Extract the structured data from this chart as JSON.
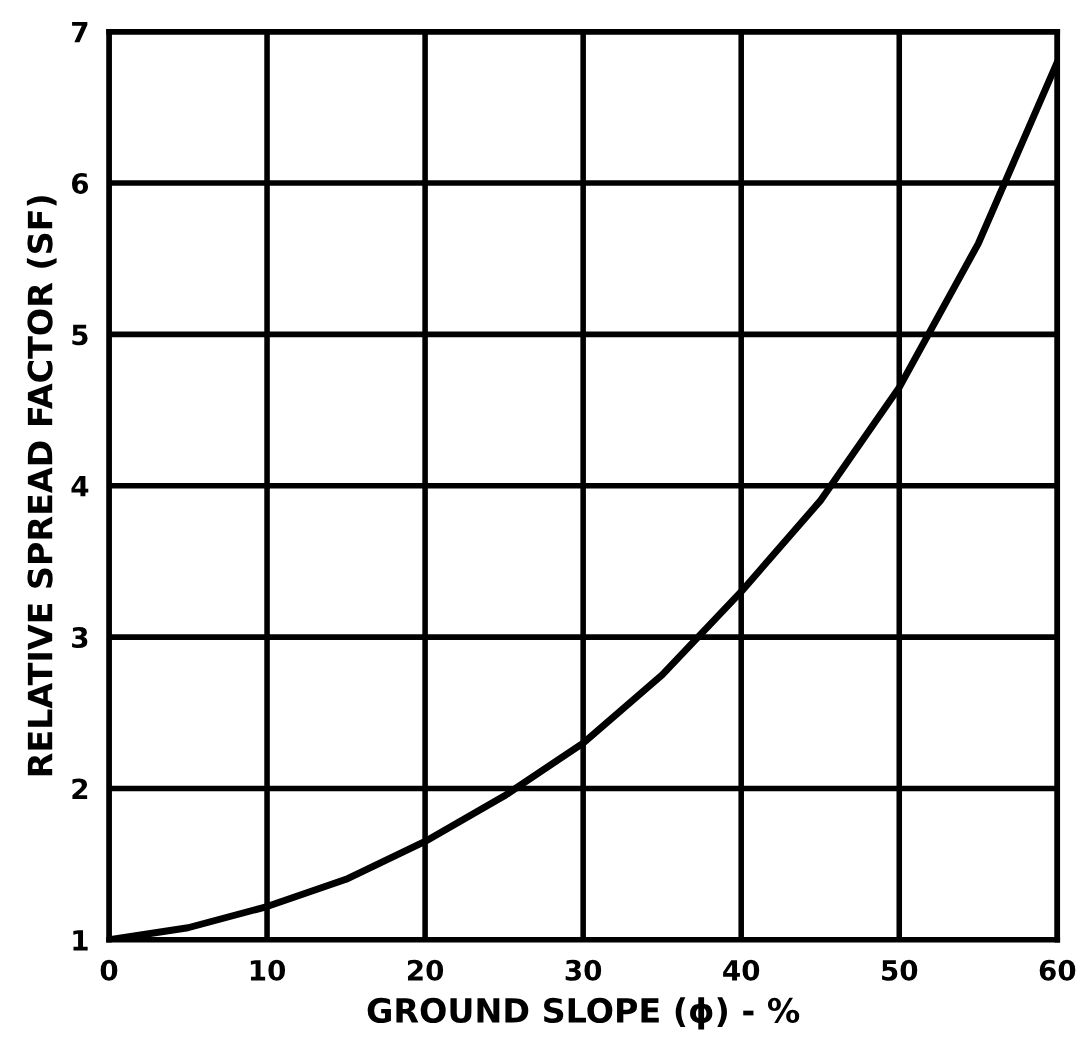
{
  "chart_data": {
    "type": "line",
    "xlabel": "GROUND SLOPE (ϕ) - %",
    "ylabel": "RELATIVE SPREAD FACTOR (SF)",
    "x": [
      0,
      5,
      10,
      15,
      20,
      25,
      30,
      35,
      40,
      45,
      50,
      55,
      60
    ],
    "series": [
      {
        "color": "#000000",
        "values": [
          1.0,
          1.08,
          1.22,
          1.4,
          1.65,
          1.95,
          2.3,
          2.75,
          3.3,
          3.9,
          4.65,
          5.6,
          6.8
        ]
      }
    ],
    "xlim": [
      0,
      60
    ],
    "xticks": [
      0,
      10,
      20,
      30,
      40,
      50,
      60
    ],
    "ylim": [
      1,
      7
    ],
    "yticks": [
      1,
      2,
      3,
      4,
      5,
      6,
      7
    ],
    "grid": true,
    "marker": "none",
    "line_style": "solid"
  }
}
